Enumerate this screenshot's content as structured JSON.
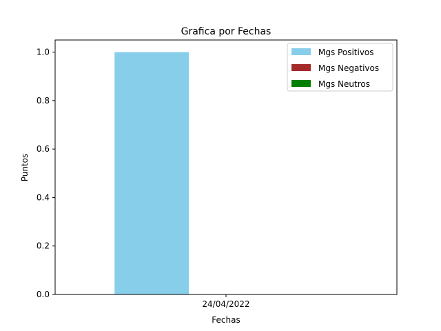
{
  "chart_data": {
    "type": "bar",
    "title": "Grafica por Fechas",
    "xlabel": "Fechas",
    "ylabel": "Puntos",
    "categories": [
      "24/04/2022"
    ],
    "series": [
      {
        "name": "Mgs Positivos",
        "values": [
          1.0
        ],
        "color": "#87ceeb"
      },
      {
        "name": "Mgs Negativos",
        "values": [
          0.0
        ],
        "color": "#a52a2a"
      },
      {
        "name": "Mgs Neutros",
        "values": [
          0.0
        ],
        "color": "#008000"
      }
    ],
    "ylim": [
      0,
      1.05
    ],
    "yticks": [
      "0.0",
      "0.2",
      "0.4",
      "0.6",
      "0.8",
      "1.0"
    ],
    "grid": false,
    "legend_position": "top-right"
  }
}
